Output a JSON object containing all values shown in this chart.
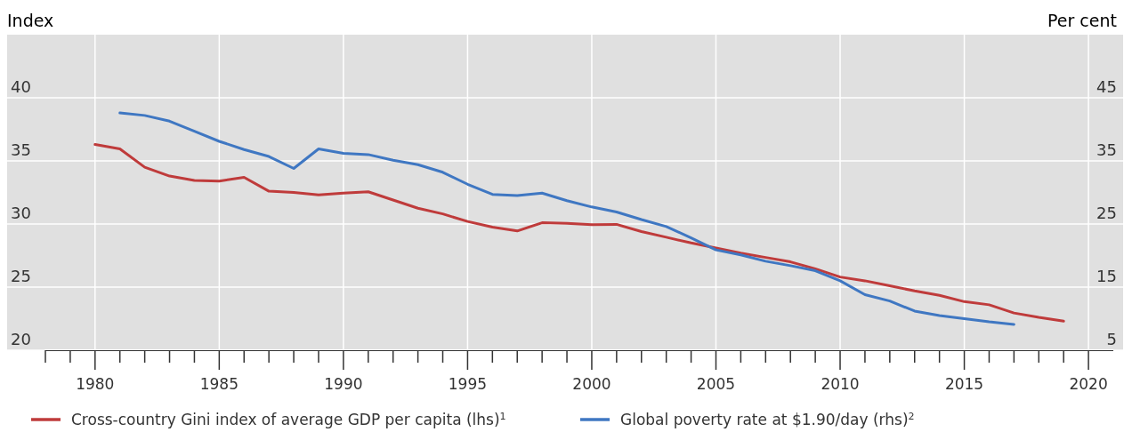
{
  "chart_data": {
    "type": "line",
    "ylabel": "Index",
    "y2label": "Per cent",
    "xlim": [
      1978,
      2021
    ],
    "xticks": [
      {
        "value": 1978,
        "label": null
      },
      {
        "value": 1979,
        "label": null
      },
      1980,
      {
        "value": 1981,
        "label": null
      },
      {
        "value": 1982,
        "label": null
      },
      {
        "value": 1983,
        "label": null
      },
      {
        "value": 1984,
        "label": null
      },
      1985,
      {
        "value": 1986,
        "label": null
      },
      {
        "value": 1987,
        "label": null
      },
      {
        "value": 1988,
        "label": null
      },
      {
        "value": 1989,
        "label": null
      },
      1990,
      {
        "value": 1991,
        "label": null
      },
      {
        "value": 1992,
        "label": null
      },
      {
        "value": 1993,
        "label": null
      },
      {
        "value": 1994,
        "label": null
      },
      1995,
      {
        "value": 1996,
        "label": null
      },
      {
        "value": 1997,
        "label": null
      },
      {
        "value": 1998,
        "label": null
      },
      {
        "value": 1999,
        "label": null
      },
      2000,
      {
        "value": 2001,
        "label": null
      },
      {
        "value": 2002,
        "label": null
      },
      {
        "value": 2003,
        "label": null
      },
      {
        "value": 2004,
        "label": null
      },
      2005,
      {
        "value": 2006,
        "label": null
      },
      {
        "value": 2007,
        "label": null
      },
      {
        "value": 2008,
        "label": null
      },
      {
        "value": 2009,
        "label": null
      },
      2010,
      {
        "value": 2011,
        "label": null
      },
      {
        "value": 2012,
        "label": null
      },
      {
        "value": 2013,
        "label": null
      },
      {
        "value": 2014,
        "label": null
      },
      2015,
      {
        "value": 2016,
        "label": null
      },
      {
        "value": 2017,
        "label": null
      },
      {
        "value": 2018,
        "label": null
      },
      {
        "value": 2019,
        "label": null
      },
      2020
    ],
    "ylim": [
      20,
      45
    ],
    "yticks": [
      20,
      25,
      30,
      35,
      40
    ],
    "y2lim": [
      5,
      55
    ],
    "y2ticks": [
      5,
      15,
      25,
      35,
      45
    ],
    "grid": true,
    "legend": "bottom",
    "series": [
      {
        "name": "Cross-country Gini index of average GDP per capita (lhs)$^{1}$",
        "color": "#bf3b3b",
        "x": [
          1980,
          1981,
          1982,
          1983,
          1984,
          1985,
          1986,
          1987,
          1988,
          1989,
          1990,
          1991,
          1992,
          1993,
          1994,
          1995,
          1996,
          1997,
          1998,
          1999,
          2000,
          2001,
          2002,
          2003,
          2004,
          2005,
          2006,
          2007,
          2008,
          2009,
          2010,
          2011,
          2012,
          2013,
          2014,
          2015,
          2016,
          2017,
          2018,
          2019
        ],
        "values": [
          36.3,
          35.95,
          34.5,
          33.8,
          33.45,
          33.4,
          33.7,
          32.6,
          32.5,
          32.3,
          32.45,
          32.55,
          31.9,
          31.25,
          30.8,
          30.2,
          29.75,
          29.45,
          30.1,
          30.05,
          29.95,
          29.97,
          29.4,
          28.95,
          28.5,
          28.1,
          27.7,
          27.35,
          27.0,
          26.45,
          25.8,
          25.5,
          25.1,
          24.7,
          24.35,
          23.85,
          23.6,
          22.95,
          22.6,
          22.3
        ]
      },
      {
        "name": "Global poverty rate at $1.90/day (rhs)$^{2}$",
        "color": "#3f77c2",
        "axis": "y2",
        "x": [
          1981,
          1982,
          1983,
          1984,
          1985,
          1986,
          1987,
          1988,
          1989,
          1990,
          1991,
          1992,
          1993,
          1994,
          1995,
          1996,
          1997,
          1998,
          1999,
          2000,
          2001,
          2002,
          2003,
          2004,
          2005,
          2006,
          2007,
          2008,
          2009,
          2010,
          2011,
          2012,
          2013,
          2014,
          2015,
          2016,
          2017
        ],
        "values": [
          42.6,
          42.2,
          41.3,
          39.7,
          38.1,
          36.8,
          35.7,
          33.8,
          36.9,
          36.2,
          36.0,
          35.1,
          34.4,
          33.2,
          31.3,
          29.7,
          29.5,
          29.9,
          28.7,
          27.7,
          26.9,
          25.7,
          24.6,
          22.8,
          20.9,
          20.1,
          19.1,
          18.4,
          17.6,
          16.0,
          13.8,
          12.8,
          11.2,
          10.5,
          10.0,
          9.5,
          9.1
        ]
      }
    ]
  }
}
